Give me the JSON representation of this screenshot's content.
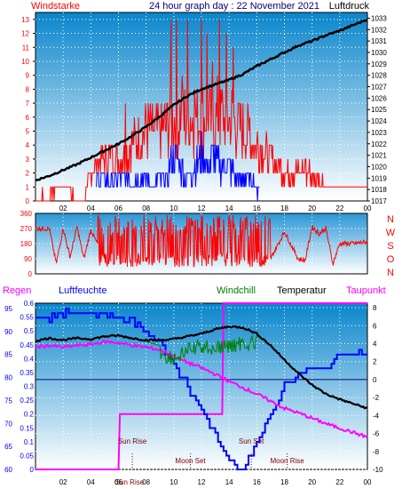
{
  "header": {
    "title": "24 hour graph day : 22 November 2021",
    "left_label": "Windstarke",
    "right_label": "Luftdruck"
  },
  "colors": {
    "wind": "#ff0000",
    "gust": "#0000ff",
    "pressure": "#000000",
    "temperature": "#000000",
    "humidity": "#0000ff",
    "windchill": "#008000",
    "dewpoint": "#ff00ff",
    "rain": "#ff00ff",
    "title": "#000080",
    "panel_top": "#0a86cc",
    "panel_bottom": "#ffffff"
  },
  "x_ticks": [
    "02",
    "04",
    "06",
    "08",
    "10",
    "12",
    "14",
    "16",
    "18",
    "20",
    "22",
    "00"
  ],
  "chart_data": [
    {
      "type": "line",
      "name": "wind_pressure",
      "ylabel_left": "Windstarke",
      "ylabel_right": "Luftdruck",
      "left_ticks": [
        "0",
        "1",
        "2",
        "3",
        "4",
        "5",
        "6",
        "7",
        "8",
        "9",
        "10",
        "11",
        "12",
        "13"
      ],
      "right_ticks": [
        "1017",
        "1018",
        "1019",
        "1020",
        "1021",
        "1022",
        "1023",
        "1024",
        "1025",
        "1026",
        "1027",
        "1028",
        "1029",
        "1030",
        "1031",
        "1032",
        "1033"
      ],
      "ylim_left": [
        0,
        13.5
      ],
      "ylim_right": [
        1017,
        1033.5
      ],
      "pressure_x": [
        0,
        1,
        2,
        3,
        4,
        5,
        6,
        7,
        8,
        9,
        10,
        11,
        12,
        13,
        14,
        15,
        16,
        17,
        18,
        19,
        20,
        21,
        22,
        23,
        24
      ],
      "pressure_y": [
        1018.8,
        1019.2,
        1019.7,
        1020.2,
        1020.8,
        1021.4,
        1022.0,
        1022.7,
        1023.5,
        1024.4,
        1025.4,
        1026.2,
        1026.8,
        1027.2,
        1027.6,
        1028.1,
        1028.8,
        1029.4,
        1030.0,
        1030.6,
        1031.0,
        1031.5,
        1031.9,
        1032.4,
        1032.9
      ],
      "wind_level_x": [
        0,
        2,
        3.5,
        4,
        5,
        6,
        7,
        8,
        9,
        10,
        11,
        12,
        13,
        14,
        15,
        16,
        17,
        18,
        19,
        20,
        21,
        22,
        23,
        24
      ],
      "wind_level_y": [
        0,
        1,
        0,
        2,
        3,
        3,
        4,
        5,
        5,
        6,
        6,
        6,
        6,
        6,
        5,
        4,
        3,
        2,
        2,
        2,
        1,
        1,
        1,
        1
      ],
      "wind_peak_x": [
        0.5,
        2,
        4.5,
        5.5,
        6.5,
        7,
        8,
        8.5,
        9.8,
        10.2,
        10.6,
        11,
        11.5,
        12,
        12.4,
        12.8,
        13.3,
        13.8,
        14.3,
        15,
        15.5,
        16.5,
        17,
        18.5,
        19.5,
        20.5,
        22.5
      ],
      "wind_peak_y": [
        1,
        1,
        3,
        4,
        7,
        4,
        6,
        5,
        13,
        13,
        9,
        13,
        8,
        13,
        12,
        10,
        13,
        12,
        11,
        7,
        6,
        3,
        4,
        2,
        3,
        2,
        1
      ],
      "gust_x": [
        4.5,
        5,
        5.5,
        6,
        6.5,
        7,
        7.5,
        8,
        8.5,
        9,
        9.5,
        10,
        10.5,
        11,
        11.5,
        12,
        12.5,
        13,
        13.5,
        14,
        14.5,
        15,
        15.5,
        16
      ],
      "gust_y": [
        2,
        2,
        2,
        2,
        2,
        2,
        2,
        2,
        1,
        2,
        2,
        4,
        3,
        2,
        3,
        4,
        3,
        4,
        3,
        3,
        2,
        2,
        2,
        1
      ]
    },
    {
      "type": "line",
      "name": "wind_direction",
      "y_ticks": [
        "0",
        "90",
        "180",
        "270",
        "360"
      ],
      "right_letters": [
        "N",
        "W",
        "S",
        "O",
        "N"
      ],
      "ylim": [
        0,
        360
      ],
      "x": [
        0,
        1,
        1.5,
        2,
        2.5,
        3,
        3.5,
        4,
        5,
        5.5,
        6,
        6.5,
        7,
        7.5,
        8,
        8.5,
        9,
        9.5,
        10,
        10.5,
        11,
        11.5,
        12,
        12.5,
        13,
        13.5,
        14,
        14.5,
        15,
        15.5,
        16,
        16.5,
        17,
        18,
        19,
        19.5,
        20,
        20.5,
        21,
        21.5,
        22,
        23,
        24
      ],
      "y": [
        270,
        270,
        60,
        270,
        100,
        280,
        90,
        260,
        90,
        300,
        60,
        320,
        40,
        310,
        70,
        290,
        30,
        330,
        50,
        300,
        40,
        320,
        60,
        280,
        50,
        310,
        70,
        290,
        80,
        260,
        100,
        240,
        90,
        250,
        90,
        80,
        280,
        240,
        270,
        60,
        180,
        180,
        190
      ]
    },
    {
      "type": "line",
      "name": "thermo_hygro",
      "labels": {
        "rain": "Regen",
        "humidity": "Luftfeuchte",
        "windchill": "Windchill",
        "temperature": "Temperatur",
        "dewpoint": "Taupunkt"
      },
      "humidity_ticks": [
        "60",
        "65",
        "70",
        "75",
        "80",
        "85",
        "90",
        "95"
      ],
      "rain_ticks": [
        "0",
        "0.05",
        "0.1",
        "0.15",
        "0.2",
        "0.25",
        "0.3",
        "0.35",
        "0.4",
        "0.45",
        "0.5",
        "0.55",
        "0.6"
      ],
      "temp_ticks": [
        "-10",
        "-8",
        "-6",
        "-4",
        "-2",
        "0",
        "2",
        "4",
        "6",
        "8"
      ],
      "humidity_lim": [
        60,
        95
      ],
      "rain_lim": [
        0,
        0.6
      ],
      "temp_lim": [
        -10,
        8.5
      ],
      "x": [
        0,
        1,
        2,
        3,
        4,
        5,
        6,
        7,
        8,
        9,
        10,
        11,
        12,
        13,
        14,
        15,
        16,
        17,
        18,
        19,
        20,
        21,
        22,
        23,
        24
      ],
      "temperature": [
        4.3,
        4.6,
        4.4,
        4.6,
        4.5,
        4.8,
        4.9,
        4.6,
        4.4,
        4.4,
        4.5,
        4.8,
        5.1,
        5.6,
        5.9,
        5.8,
        5.1,
        3.8,
        2.2,
        0.7,
        -0.6,
        -1.6,
        -2.2,
        -2.7,
        -3.2
      ],
      "dewpoint": [
        3.6,
        3.8,
        3.6,
        3.8,
        3.9,
        4.2,
        4.1,
        3.8,
        3.6,
        3.3,
        2.6,
        1.9,
        1.3,
        0.6,
        -0.2,
        -0.9,
        -1.6,
        -2.4,
        -3.2,
        -3.7,
        -4.3,
        -4.9,
        -5.4,
        -5.9,
        -6.4
      ],
      "windchill": [
        4.3,
        4.6,
        4.4,
        4.6,
        4.5,
        4.8,
        4.9,
        4.6,
        4.2,
        3.8,
        3.2,
        4.1,
        4.6,
        4.4,
        4.6,
        5.0,
        4.9,
        3.8,
        2.2,
        0.7,
        -0.6,
        -1.6,
        -2.2,
        -2.7,
        -3.2
      ],
      "humidity": [
        93,
        93,
        94,
        94,
        94,
        94,
        93,
        92,
        90,
        87,
        83,
        78,
        73,
        67,
        62,
        60,
        66,
        72,
        78,
        81,
        82,
        82,
        85,
        85,
        85
      ],
      "rain_x": [
        0,
        6,
        6.1,
        13.5,
        13.6,
        24
      ],
      "rain": [
        0,
        0,
        0.2,
        0.2,
        0.6,
        0.6
      ],
      "events": [
        {
          "label": "Sun Rise",
          "x": 7.0,
          "row": 1
        },
        {
          "label": "Sun Set",
          "x": 15.6,
          "row": 1
        },
        {
          "label": "Moon Set",
          "x": 11.2,
          "row": 2
        },
        {
          "label": "Moon Rise",
          "x": 18.2,
          "row": 2
        },
        {
          "label": "Sun Rise",
          "x": 6.8,
          "row": 3
        }
      ]
    }
  ]
}
